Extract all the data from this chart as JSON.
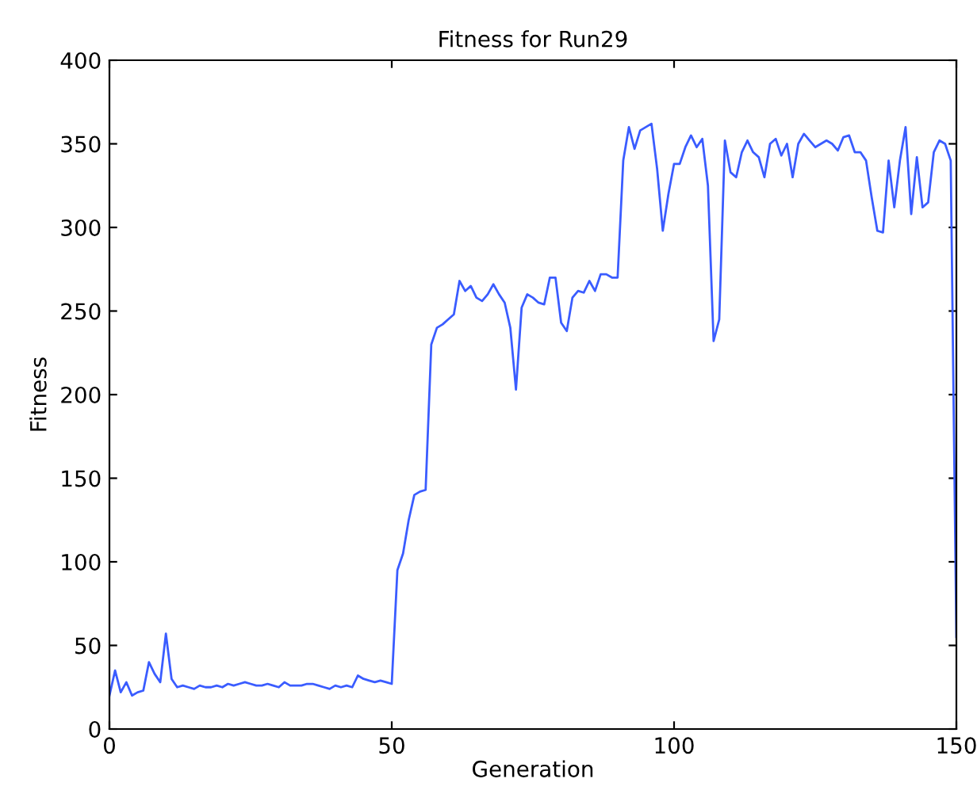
{
  "chart_data": {
    "type": "line",
    "title": "Fitness for Run29",
    "xlabel": "Generation",
    "ylabel": "Fitness",
    "xlim": [
      0,
      150
    ],
    "ylim": [
      0,
      400
    ],
    "xticks": [
      0,
      50,
      100,
      150
    ],
    "yticks": [
      0,
      50,
      100,
      150,
      200,
      250,
      300,
      350,
      400
    ],
    "grid": false,
    "legend": false,
    "series": [
      {
        "color": "#3a5cff",
        "x": [
          0,
          1,
          2,
          3,
          4,
          5,
          6,
          7,
          8,
          9,
          10,
          11,
          12,
          13,
          14,
          15,
          16,
          17,
          18,
          19,
          20,
          21,
          22,
          23,
          24,
          25,
          26,
          27,
          28,
          29,
          30,
          31,
          32,
          33,
          34,
          35,
          36,
          37,
          38,
          39,
          40,
          41,
          42,
          43,
          44,
          45,
          46,
          47,
          48,
          49,
          50,
          51,
          52,
          53,
          54,
          55,
          56,
          57,
          58,
          59,
          60,
          61,
          62,
          63,
          64,
          65,
          66,
          67,
          68,
          69,
          70,
          71,
          72,
          73,
          74,
          75,
          76,
          77,
          78,
          79,
          80,
          81,
          82,
          83,
          84,
          85,
          86,
          87,
          88,
          89,
          90,
          91,
          92,
          93,
          94,
          95,
          96,
          97,
          98,
          99,
          100,
          101,
          102,
          103,
          104,
          105,
          106,
          107,
          108,
          109,
          110,
          111,
          112,
          113,
          114,
          115,
          116,
          117,
          118,
          119,
          120,
          121,
          122,
          123,
          124,
          125,
          126,
          127,
          128,
          129,
          130,
          131,
          132,
          133,
          134,
          135,
          136,
          137,
          138,
          139,
          140,
          141,
          142,
          143,
          144,
          145,
          146,
          147,
          148,
          149,
          150
        ],
        "values": [
          20,
          35,
          22,
          28,
          20,
          22,
          23,
          40,
          33,
          28,
          57,
          30,
          25,
          26,
          25,
          24,
          26,
          25,
          25,
          26,
          25,
          27,
          26,
          27,
          28,
          27,
          26,
          26,
          27,
          26,
          25,
          28,
          26,
          26,
          26,
          27,
          27,
          26,
          25,
          24,
          26,
          25,
          26,
          25,
          32,
          30,
          29,
          28,
          29,
          28,
          27,
          95,
          105,
          125,
          140,
          142,
          143,
          230,
          240,
          242,
          245,
          248,
          268,
          262,
          265,
          258,
          256,
          260,
          266,
          260,
          255,
          240,
          203,
          252,
          260,
          258,
          255,
          254,
          270,
          270,
          243,
          238,
          258,
          262,
          261,
          268,
          262,
          272,
          272,
          270,
          270,
          340,
          360,
          347,
          358,
          360,
          362,
          335,
          298,
          320,
          338,
          338,
          348,
          355,
          348,
          353,
          325,
          232,
          245,
          352,
          333,
          330,
          345,
          352,
          345,
          342,
          330,
          350,
          353,
          343,
          350,
          330,
          350,
          356,
          352,
          348,
          350,
          352,
          350,
          346,
          354,
          355,
          345,
          345,
          340,
          318,
          298,
          297,
          340,
          312,
          340,
          360,
          308,
          342,
          312,
          315,
          345,
          352,
          350,
          340,
          55
        ]
      }
    ]
  }
}
